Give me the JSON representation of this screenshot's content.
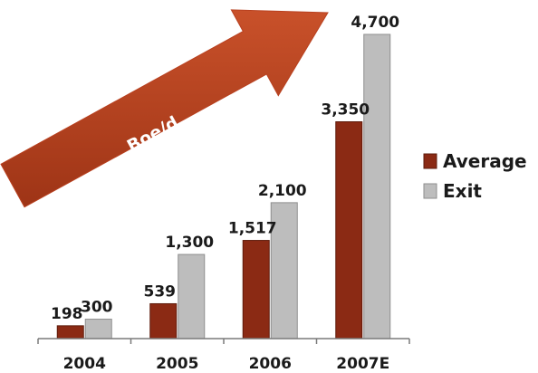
{
  "chart_data": {
    "type": "bar",
    "categories": [
      "2004",
      "2005",
      "2006",
      "2007E"
    ],
    "series": [
      {
        "name": "Average",
        "values": [
          198,
          539,
          1517,
          3350
        ],
        "labels": [
          "198",
          "539",
          "1,517",
          "3,350"
        ],
        "color": "#8b2a14"
      },
      {
        "name": "Exit",
        "values": [
          300,
          1300,
          2100,
          4700
        ],
        "labels": [
          "300",
          "1,300",
          "2,100",
          "4,700"
        ],
        "color": "#bdbdbd"
      }
    ],
    "annotation": "Boe/d",
    "annotation_color": "#b8401f",
    "ylim": [
      0,
      4700
    ],
    "legend_position": "right",
    "grid": false
  }
}
